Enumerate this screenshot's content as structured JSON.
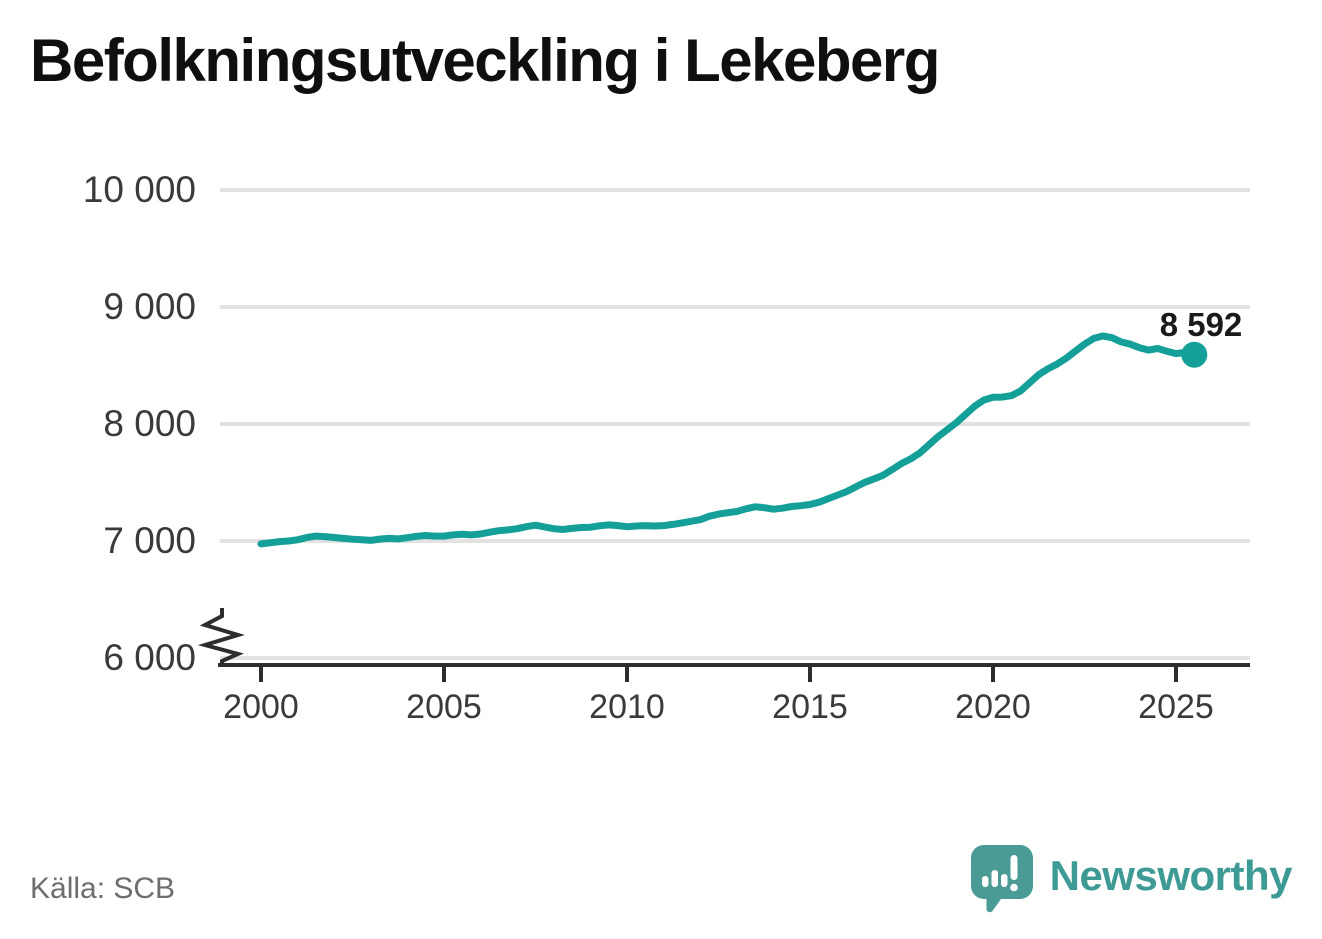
{
  "title": "Befolkningsutveckling i Lekeberg",
  "source": "Källa: SCB",
  "branding": {
    "logo_text": "Newsworthy",
    "logo_icon": "newsworthy-speech-bubble-chart-icon",
    "logo_color": "#4a9b96",
    "logo_text_color": "#3e9a94"
  },
  "colors": {
    "line": "#14a098",
    "grid": "#e2e2e2",
    "axis": "#2d2d2d",
    "tick_label": "#3a3a3a",
    "annotation": "#1a1a1a",
    "source_text": "#6e6e6e",
    "title": "#0f0f0f"
  },
  "chart_data": {
    "type": "line",
    "title": "Befolkningsutveckling i Lekeberg",
    "xlabel": "",
    "ylabel": "",
    "grid": "horizontal",
    "legend": "none",
    "axis_break": true,
    "ylim": [
      6000,
      10000
    ],
    "xlim": [
      2000,
      2027
    ],
    "y_ticks": [
      {
        "value": 10000,
        "label": "10 000"
      },
      {
        "value": 9000,
        "label": "9 000"
      },
      {
        "value": 8000,
        "label": "8 000"
      },
      {
        "value": 7000,
        "label": "7 000"
      },
      {
        "value": 6000,
        "label": "6 000"
      }
    ],
    "x_ticks": [
      {
        "value": 2000,
        "label": "2000"
      },
      {
        "value": 2005,
        "label": "2005"
      },
      {
        "value": 2010,
        "label": "2010"
      },
      {
        "value": 2015,
        "label": "2015"
      },
      {
        "value": 2020,
        "label": "2020"
      },
      {
        "value": 2025,
        "label": "2025"
      }
    ],
    "end_label": "8 592",
    "end_value": 8592,
    "series": [
      {
        "name": "Befolkning i Lekeberg",
        "x_start": 2000,
        "x_step": 0.25,
        "values": [
          6975,
          6985,
          6995,
          7000,
          7010,
          7030,
          7042,
          7038,
          7030,
          7022,
          7015,
          7010,
          7005,
          7016,
          7022,
          7018,
          7028,
          7040,
          7047,
          7042,
          7042,
          7052,
          7058,
          7052,
          7060,
          7075,
          7088,
          7095,
          7105,
          7122,
          7135,
          7120,
          7105,
          7098,
          7108,
          7115,
          7118,
          7130,
          7138,
          7132,
          7122,
          7128,
          7132,
          7128,
          7132,
          7142,
          7155,
          7168,
          7182,
          7212,
          7230,
          7242,
          7252,
          7275,
          7292,
          7285,
          7272,
          7280,
          7295,
          7302,
          7312,
          7332,
          7362,
          7392,
          7422,
          7462,
          7502,
          7532,
          7562,
          7612,
          7662,
          7702,
          7752,
          7822,
          7892,
          7952,
          8012,
          8082,
          8152,
          8205,
          8228,
          8230,
          8242,
          8282,
          8352,
          8422,
          8472,
          8512,
          8562,
          8622,
          8682,
          8732,
          8752,
          8738,
          8702,
          8682,
          8652,
          8632,
          8645,
          8622,
          8602,
          8612,
          8592
        ]
      }
    ]
  }
}
